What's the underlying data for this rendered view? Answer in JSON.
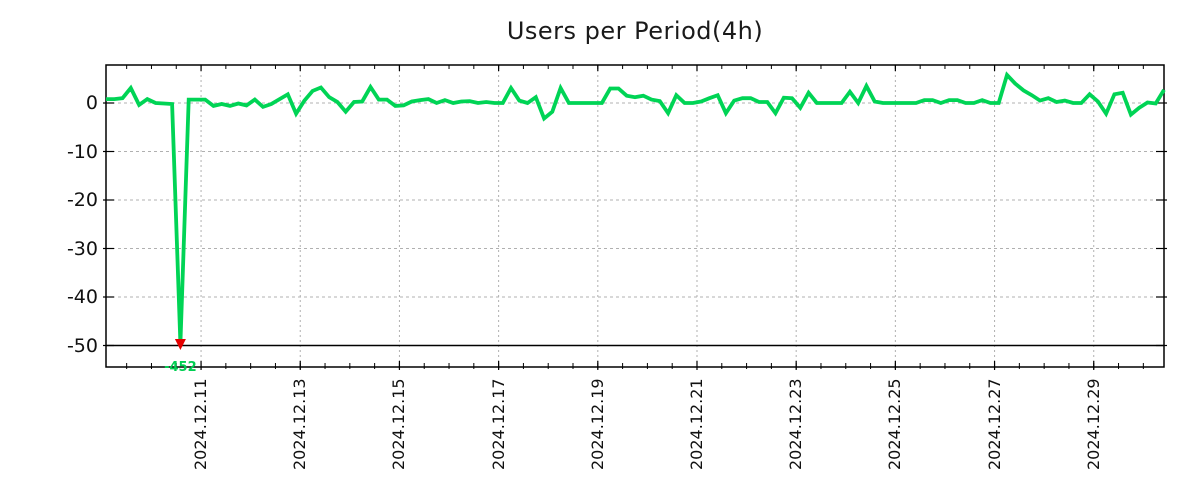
{
  "title": "Users per Period(4h)",
  "colors": {
    "line": "#00d455",
    "min_marker": "#e60000",
    "grid": "#b0b0b0",
    "axis": "#000000",
    "text": "#111111",
    "background": "#ffffff"
  },
  "chart_data": {
    "type": "line",
    "title": "Users per Period(4h)",
    "period_hours": 4,
    "x_start": "2024-12-09 02:00",
    "x_end": "2024-12-30 10:00",
    "x_tick_labels": [
      "2024.12.11",
      "2024.12.13",
      "2024.12.15",
      "2024.12.17",
      "2024.12.19",
      "2024.12.21",
      "2024.12.23",
      "2024.12.25",
      "2024.12.27",
      "2024.12.29"
    ],
    "y_tick_labels": [
      "0",
      "-10",
      "-20",
      "-30",
      "-40",
      "-50"
    ],
    "y_ticks": [
      0,
      -10,
      -20,
      -30,
      -40,
      -50
    ],
    "ylim_display": [
      -54.5,
      7.8
    ],
    "grid": true,
    "legend": "none",
    "solid_line_at": -50,
    "min_annotation": {
      "value": -452,
      "label": "-452",
      "time": "2024-12-10 14:00"
    },
    "values": [
      0.8,
      0.8,
      1.0,
      3.1,
      -0.4,
      0.8,
      0.0,
      -0.1,
      -0.2,
      -452,
      0.7,
      0.7,
      0.7,
      -0.6,
      -0.2,
      -0.6,
      -0.1,
      -0.5,
      0.7,
      -0.8,
      -0.2,
      0.8,
      1.8,
      -2.2,
      0.5,
      2.5,
      3.2,
      1.2,
      0.2,
      -1.8,
      0.2,
      0.3,
      3.3,
      0.7,
      0.7,
      -0.6,
      -0.5,
      0.3,
      0.6,
      0.8,
      0.0,
      0.6,
      0.0,
      0.3,
      0.4,
      0.0,
      0.2,
      0.0,
      0.0,
      3.1,
      0.5,
      0.0,
      1.2,
      -3.2,
      -1.8,
      3.1,
      0.0,
      0.0,
      0.0,
      0.0,
      0.0,
      3.0,
      3.0,
      1.5,
      1.2,
      1.5,
      0.7,
      0.4,
      -2.1,
      1.6,
      0.0,
      0.0,
      0.3,
      1.0,
      1.6,
      -2.1,
      0.5,
      1.0,
      1.0,
      0.2,
      0.2,
      -2.1,
      1.1,
      1.0,
      -1.0,
      2.1,
      0.0,
      0.0,
      0.0,
      0.0,
      2.3,
      0.0,
      3.5,
      0.3,
      0.0,
      0.0,
      0.0,
      0.0,
      0.0,
      0.6,
      0.6,
      0.0,
      0.6,
      0.6,
      0.0,
      0.0,
      0.6,
      0.0,
      0.0,
      5.8,
      4.0,
      2.6,
      1.6,
      0.5,
      1.0,
      0.2,
      0.5,
      0.0,
      0.0,
      1.8,
      0.3,
      -2.2,
      1.8,
      2.1,
      -2.4,
      -1.0,
      0.1,
      -0.1,
      2.7
    ]
  }
}
